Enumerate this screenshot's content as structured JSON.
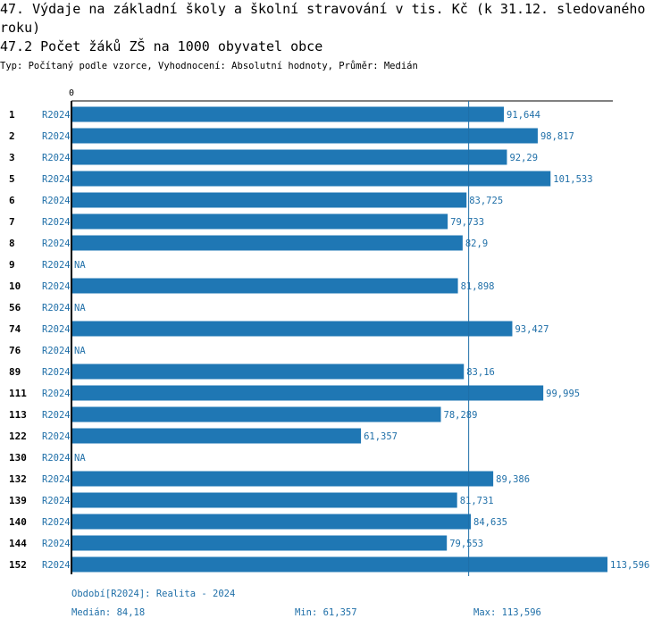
{
  "header": {
    "title": "47. Výdaje na základní školy a školní stravování v tis. Kč (k 31.12. sledovaného roku)",
    "subtitle": "47.2 Počet žáků ZŠ na 1000 obyvatel obce",
    "meta": "Typ: Počítaný podle vzorce, Vyhodnocení: Absolutní hodnoty, Průměr: Medián"
  },
  "colors": {
    "bar": "#1f77b4",
    "label": "#1f6fa8",
    "axis": "#000000",
    "median_line": "#1f6fa8"
  },
  "chart_data": {
    "type": "bar",
    "orientation": "horizontal",
    "axis_zero_label": "0",
    "xlim": [
      0,
      113.596
    ],
    "median": 84.18,
    "period": "R2024",
    "na_label": "NA",
    "rows": [
      {
        "id": "1",
        "period": "R2024",
        "value": 91.644,
        "label": "91,644"
      },
      {
        "id": "2",
        "period": "R2024",
        "value": 98.817,
        "label": "98,817"
      },
      {
        "id": "3",
        "period": "R2024",
        "value": 92.29,
        "label": "92,29"
      },
      {
        "id": "5",
        "period": "R2024",
        "value": 101.533,
        "label": "101,533"
      },
      {
        "id": "6",
        "period": "R2024",
        "value": 83.725,
        "label": "83,725"
      },
      {
        "id": "7",
        "period": "R2024",
        "value": 79.733,
        "label": "79,733"
      },
      {
        "id": "8",
        "period": "R2024",
        "value": 82.9,
        "label": "82,9"
      },
      {
        "id": "9",
        "period": "R2024",
        "value": null,
        "label": "NA"
      },
      {
        "id": "10",
        "period": "R2024",
        "value": 81.898,
        "label": "81,898"
      },
      {
        "id": "56",
        "period": "R2024",
        "value": null,
        "label": "NA"
      },
      {
        "id": "74",
        "period": "R2024",
        "value": 93.427,
        "label": "93,427"
      },
      {
        "id": "76",
        "period": "R2024",
        "value": null,
        "label": "NA"
      },
      {
        "id": "89",
        "period": "R2024",
        "value": 83.16,
        "label": "83,16"
      },
      {
        "id": "111",
        "period": "R2024",
        "value": 99.995,
        "label": "99,995"
      },
      {
        "id": "113",
        "period": "R2024",
        "value": 78.289,
        "label": "78,289"
      },
      {
        "id": "122",
        "period": "R2024",
        "value": 61.357,
        "label": "61,357"
      },
      {
        "id": "130",
        "period": "R2024",
        "value": null,
        "label": "NA"
      },
      {
        "id": "132",
        "period": "R2024",
        "value": 89.386,
        "label": "89,386"
      },
      {
        "id": "139",
        "period": "R2024",
        "value": 81.731,
        "label": "81,731"
      },
      {
        "id": "140",
        "period": "R2024",
        "value": 84.635,
        "label": "84,635"
      },
      {
        "id": "144",
        "period": "R2024",
        "value": 79.553,
        "label": "79,553"
      },
      {
        "id": "152",
        "period": "R2024",
        "value": 113.596,
        "label": "113,596"
      }
    ]
  },
  "footer": {
    "period_note": "Období[R2024]: Realita - 2024",
    "median_text": "Medián: 84,18",
    "min_text": "Min: 61,357",
    "max_text": "Max: 113,596"
  }
}
